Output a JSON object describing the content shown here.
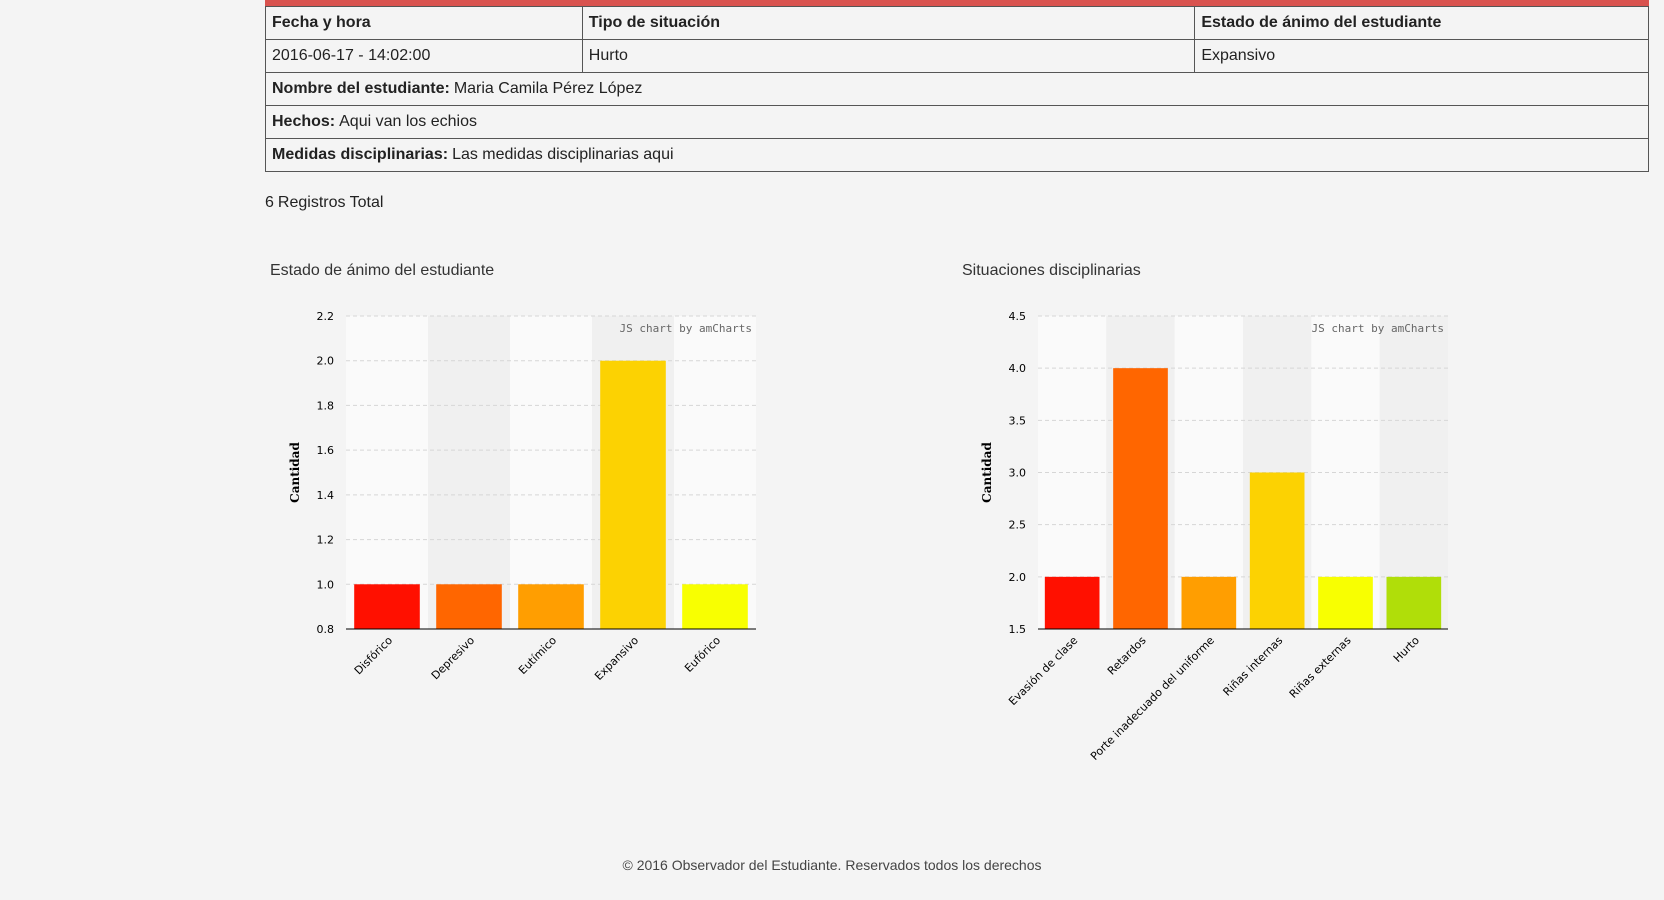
{
  "record": {
    "headers": [
      "Fecha y hora",
      "Tipo de situación",
      "Estado de ánimo del estudiante"
    ],
    "values": [
      "2016-06-17 - 14:02:00",
      "Hurto",
      "Expansivo"
    ],
    "student_label": "Nombre del estudiante:",
    "student_value": "Maria Camila Pérez López",
    "facts_label": "Hechos:",
    "facts_value": "Aqui van los echios",
    "measures_label": "Medidas disciplinarias:",
    "measures_value": "Las medidas disciplinarias aqui"
  },
  "summary": {
    "count": "6",
    "label": "Registros Total"
  },
  "chart_data": [
    {
      "type": "bar",
      "title": "Estado de ánimo del estudiante",
      "ylabel": "Cantidad",
      "xlabel": "",
      "credit": "JS chart by amCharts",
      "categories": [
        "Disfórico",
        "Depresivo",
        "Eutímico",
        "Expansivo",
        "Eufórico"
      ],
      "values": [
        1,
        1,
        1,
        2,
        1
      ],
      "colors": [
        "#ff1000",
        "#ff6600",
        "#ff9e01",
        "#fcd202",
        "#f8ff01"
      ],
      "ylim": [
        0.8,
        2.2
      ],
      "yticks": [
        0.8,
        1.0,
        1.2,
        1.4,
        1.6,
        1.8,
        2.0,
        2.2
      ],
      "ytick_labels": [
        "0.8",
        "1.0",
        "1.2",
        "1.4",
        "1.6",
        "1.8",
        "2.0",
        "2.2"
      ],
      "grid": true
    },
    {
      "type": "bar",
      "title": "Situaciones disciplinarias",
      "ylabel": "Cantidad",
      "xlabel": "",
      "credit": "JS chart by amCharts",
      "categories": [
        "Evasión de clase",
        "Retardos",
        "Porte inadecuado del uniforme",
        "Riñas internas",
        "Riñas externas",
        "Hurto"
      ],
      "values": [
        2,
        4,
        2,
        3,
        2,
        2
      ],
      "colors": [
        "#ff1000",
        "#ff6600",
        "#ff9e01",
        "#fcd202",
        "#f8ff01",
        "#b0de09"
      ],
      "ylim": [
        1.5,
        4.5
      ],
      "yticks": [
        1.5,
        2.0,
        2.5,
        3.0,
        3.5,
        4.0,
        4.5
      ],
      "ytick_labels": [
        "1.5",
        "2.0",
        "2.5",
        "3.0",
        "3.5",
        "4.0",
        "4.5"
      ],
      "grid": true
    }
  ],
  "footer": {
    "copyright": "© 2016 Observador del Estudiante.",
    "rights": "Reservados todos los derechos"
  }
}
